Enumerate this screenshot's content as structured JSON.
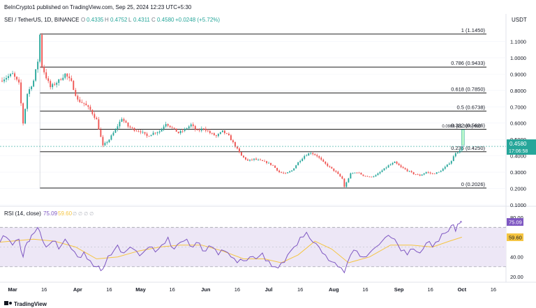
{
  "header": {
    "published": "BeInCrypto1 published on TradingView.com, Sep 25, 2024 12:23 UTC+5:30",
    "symbol": "SEI / TetherUS, 1D, BINANCE",
    "ohlc": {
      "o_label": "O",
      "o": "0.4335",
      "h_label": "H",
      "h": "0.4752",
      "l_label": "L",
      "l": "0.4311",
      "c_label": "C",
      "c": "0.4580",
      "change": "+0.0248 (+5.72%)"
    }
  },
  "currency": "USDT",
  "colors": {
    "up": "#26a69a",
    "down": "#ef5350",
    "rsi_line": "#7e57c2",
    "rsi_ma": "#f5c542",
    "rsi_band": "#ede7f6",
    "fib_line": "#202020",
    "last_price_bg": "#26a69a",
    "grid": "#f0f3fa"
  },
  "chart_data": [
    {
      "type": "candlestick",
      "ylim": [
        0.1,
        1.2
      ],
      "yticks": [
        "1.1000",
        "1.0000",
        "0.9000",
        "0.8000",
        "0.7000",
        "0.6000",
        "0.5000",
        "0.4000",
        "0.3000",
        "0.2000",
        "0.1000"
      ],
      "ytick_values": [
        1.1,
        1.0,
        0.9,
        0.8,
        0.7,
        0.6,
        0.5,
        0.4,
        0.3,
        0.2,
        0.1
      ],
      "x_labels": [
        "Mar",
        "16",
        "Apr",
        "16",
        "May",
        "16",
        "Jun",
        "16",
        "Jul",
        "16",
        "Aug",
        "16",
        "Sep",
        "16",
        "Oct",
        "16"
      ],
      "x_label_days": [
        0,
        15,
        31,
        46,
        61,
        76,
        92,
        107,
        122,
        137,
        153,
        168,
        184,
        199,
        214,
        229
      ],
      "x_range_days": [
        -6,
        235
      ],
      "fib_levels": [
        {
          "label": "1 (1.1450)",
          "value": 1.145
        },
        {
          "label": "0.786 (0.9433)",
          "value": 0.9433
        },
        {
          "label": "0.618 (0.7850)",
          "value": 0.785
        },
        {
          "label": "0.5 (0.6738)",
          "value": 0.6738
        },
        {
          "label": "0.382 (0.5626)",
          "value": 0.5626
        },
        {
          "label": "0.236 (0.4250)",
          "value": 0.425
        },
        {
          "label": "0 (0.2026)",
          "value": 0.2026
        }
      ],
      "measure": {
        "label": "0.0989 (21.33%) 989",
        "from": 0.465,
        "to": 0.56
      },
      "last_price": {
        "value": 0.458,
        "label": "0.4580",
        "countdown": "17:06:58"
      },
      "price_path": [
        [
          -6,
          0.86
        ],
        [
          -3,
          0.88
        ],
        [
          0,
          0.9
        ],
        [
          3,
          0.84
        ],
        [
          5,
          0.6
        ],
        [
          7,
          0.78
        ],
        [
          10,
          0.86
        ],
        [
          12,
          0.98
        ],
        [
          13,
          1.14
        ],
        [
          14,
          0.95
        ],
        [
          16,
          0.88
        ],
        [
          18,
          0.82
        ],
        [
          22,
          0.86
        ],
        [
          25,
          0.9
        ],
        [
          28,
          0.85
        ],
        [
          31,
          0.74
        ],
        [
          34,
          0.72
        ],
        [
          37,
          0.68
        ],
        [
          40,
          0.62
        ],
        [
          43,
          0.46
        ],
        [
          46,
          0.5
        ],
        [
          49,
          0.56
        ],
        [
          52,
          0.63
        ],
        [
          55,
          0.58
        ],
        [
          58,
          0.56
        ],
        [
          61,
          0.55
        ],
        [
          64,
          0.52
        ],
        [
          67,
          0.54
        ],
        [
          70,
          0.55
        ],
        [
          73,
          0.6
        ],
        [
          76,
          0.57
        ],
        [
          79,
          0.54
        ],
        [
          82,
          0.56
        ],
        [
          85,
          0.59
        ],
        [
          88,
          0.55
        ],
        [
          91,
          0.57
        ],
        [
          94,
          0.54
        ],
        [
          97,
          0.52
        ],
        [
          100,
          0.55
        ],
        [
          103,
          0.52
        ],
        [
          106,
          0.46
        ],
        [
          109,
          0.4
        ],
        [
          112,
          0.37
        ],
        [
          115,
          0.38
        ],
        [
          118,
          0.37
        ],
        [
          121,
          0.36
        ],
        [
          124,
          0.34
        ],
        [
          127,
          0.3
        ],
        [
          130,
          0.29
        ],
        [
          133,
          0.31
        ],
        [
          136,
          0.36
        ],
        [
          139,
          0.4
        ],
        [
          142,
          0.42
        ],
        [
          145,
          0.4
        ],
        [
          148,
          0.36
        ],
        [
          151,
          0.33
        ],
        [
          154,
          0.3
        ],
        [
          157,
          0.26
        ],
        [
          158,
          0.21
        ],
        [
          161,
          0.29
        ],
        [
          164,
          0.3
        ],
        [
          167,
          0.28
        ],
        [
          170,
          0.27
        ],
        [
          173,
          0.28
        ],
        [
          176,
          0.31
        ],
        [
          179,
          0.34
        ],
        [
          182,
          0.36
        ],
        [
          185,
          0.33
        ],
        [
          188,
          0.31
        ],
        [
          191,
          0.29
        ],
        [
          194,
          0.28
        ],
        [
          197,
          0.3
        ],
        [
          200,
          0.29
        ],
        [
          203,
          0.3
        ],
        [
          206,
          0.33
        ],
        [
          209,
          0.37
        ],
        [
          211,
          0.42
        ],
        [
          213,
          0.43
        ],
        [
          214,
          0.458
        ]
      ]
    },
    {
      "type": "line",
      "title": "RSI (14, close)",
      "values_text": {
        "rsi": "75.09",
        "ma": "59.60"
      },
      "ylim": [
        15,
        90
      ],
      "yticks": [
        "80.00",
        "40.00",
        "20.00"
      ],
      "ytick_values": [
        80,
        40,
        20
      ],
      "bands": [
        70,
        30
      ],
      "middle": 50,
      "rsi_path": [
        [
          -6,
          55
        ],
        [
          -3,
          60
        ],
        [
          0,
          52
        ],
        [
          3,
          58
        ],
        [
          5,
          40
        ],
        [
          7,
          55
        ],
        [
          9,
          62
        ],
        [
          12,
          70
        ],
        [
          14,
          58
        ],
        [
          16,
          50
        ],
        [
          19,
          56
        ],
        [
          22,
          48
        ],
        [
          25,
          58
        ],
        [
          28,
          48
        ],
        [
          31,
          40
        ],
        [
          34,
          45
        ],
        [
          37,
          36
        ],
        [
          40,
          30
        ],
        [
          42,
          26
        ],
        [
          44,
          32
        ],
        [
          47,
          42
        ],
        [
          50,
          52
        ],
        [
          53,
          44
        ],
        [
          56,
          50
        ],
        [
          59,
          46
        ],
        [
          62,
          44
        ],
        [
          65,
          50
        ],
        [
          68,
          45
        ],
        [
          71,
          52
        ],
        [
          74,
          60
        ],
        [
          77,
          48
        ],
        [
          80,
          55
        ],
        [
          83,
          58
        ],
        [
          86,
          50
        ],
        [
          89,
          54
        ],
        [
          92,
          46
        ],
        [
          95,
          50
        ],
        [
          98,
          42
        ],
        [
          101,
          46
        ],
        [
          104,
          40
        ],
        [
          107,
          34
        ],
        [
          110,
          36
        ],
        [
          113,
          40
        ],
        [
          116,
          38
        ],
        [
          119,
          44
        ],
        [
          122,
          36
        ],
        [
          125,
          30
        ],
        [
          128,
          34
        ],
        [
          131,
          42
        ],
        [
          134,
          50
        ],
        [
          137,
          60
        ],
        [
          140,
          65
        ],
        [
          143,
          55
        ],
        [
          146,
          50
        ],
        [
          149,
          42
        ],
        [
          152,
          35
        ],
        [
          155,
          30
        ],
        [
          158,
          24
        ],
        [
          161,
          42
        ],
        [
          164,
          46
        ],
        [
          167,
          40
        ],
        [
          170,
          44
        ],
        [
          173,
          50
        ],
        [
          176,
          56
        ],
        [
          179,
          62
        ],
        [
          182,
          58
        ],
        [
          185,
          46
        ],
        [
          188,
          42
        ],
        [
          191,
          48
        ],
        [
          194,
          44
        ],
        [
          197,
          54
        ],
        [
          200,
          50
        ],
        [
          203,
          56
        ],
        [
          206,
          64
        ],
        [
          209,
          72
        ],
        [
          211,
          66
        ],
        [
          213,
          74
        ],
        [
          214,
          75
        ]
      ],
      "ma_path": [
        [
          -6,
          55
        ],
        [
          10,
          58
        ],
        [
          20,
          56
        ],
        [
          30,
          50
        ],
        [
          40,
          38
        ],
        [
          50,
          40
        ],
        [
          60,
          46
        ],
        [
          70,
          50
        ],
        [
          80,
          52
        ],
        [
          90,
          52
        ],
        [
          100,
          46
        ],
        [
          110,
          38
        ],
        [
          120,
          38
        ],
        [
          128,
          34
        ],
        [
          136,
          42
        ],
        [
          144,
          56
        ],
        [
          152,
          48
        ],
        [
          160,
          34
        ],
        [
          170,
          40
        ],
        [
          180,
          52
        ],
        [
          190,
          52
        ],
        [
          200,
          50
        ],
        [
          208,
          56
        ],
        [
          214,
          60
        ]
      ]
    }
  ],
  "footer": {
    "brand": "TradingView"
  }
}
